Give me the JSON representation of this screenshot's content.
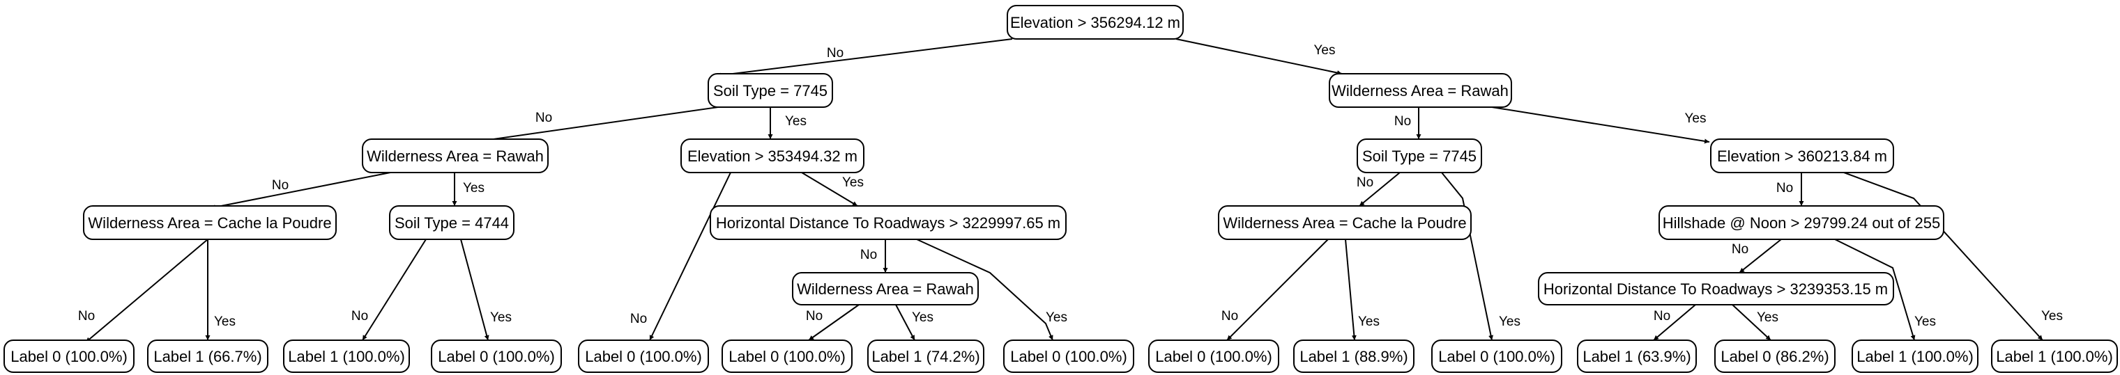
{
  "nodes": {
    "root": "Elevation > 356294.12 m",
    "n_soil_7745_a": "Soil Type = 7745",
    "n_wild_rawah_a": "Wilderness Area = Rawah",
    "n_wild_cache_a": "Wilderness Area = Cache la Poudre",
    "leaf_a1": "Label 0 (100.0%)",
    "leaf_a2": "Label 1 (66.7%)",
    "n_soil_4744": "Soil Type = 4744",
    "leaf_a3": "Label 1 (100.0%)",
    "leaf_a4": "Label 0 (100.0%)",
    "n_elev_353": "Elevation > 353494.32 m",
    "leaf_a5": "Label 0 (100.0%)",
    "n_road_3229": "Horizontal Distance To Roadways > 3229997.65 m",
    "n_wild_rawah_b": "Wilderness Area = Rawah",
    "leaf_a6": "Label 0 (100.0%)",
    "leaf_a7": "Label 1 (74.2%)",
    "leaf_a8": "Label 0 (100.0%)",
    "n_wild_rawah_c": "Wilderness Area = Rawah",
    "n_soil_7745_b": "Soil Type = 7745",
    "n_wild_cache_b": "Wilderness Area = Cache la Poudre",
    "leaf_b1": "Label 0 (100.0%)",
    "leaf_b2": "Label 1 (88.9%)",
    "leaf_b3": "Label 0 (100.0%)",
    "n_elev_360": "Elevation > 360213.84 m",
    "n_hillshade": "Hillshade @ Noon > 29799.24 out of 255",
    "n_road_3239": "Horizontal Distance To Roadways > 3239353.15 m",
    "leaf_b4": "Label 1 (63.9%)",
    "leaf_b5": "Label 0 (86.2%)",
    "leaf_b6": "Label 1 (100.0%)",
    "leaf_b7": "Label 1 (100.0%)"
  },
  "edges": {
    "no": "No",
    "yes": "Yes"
  }
}
